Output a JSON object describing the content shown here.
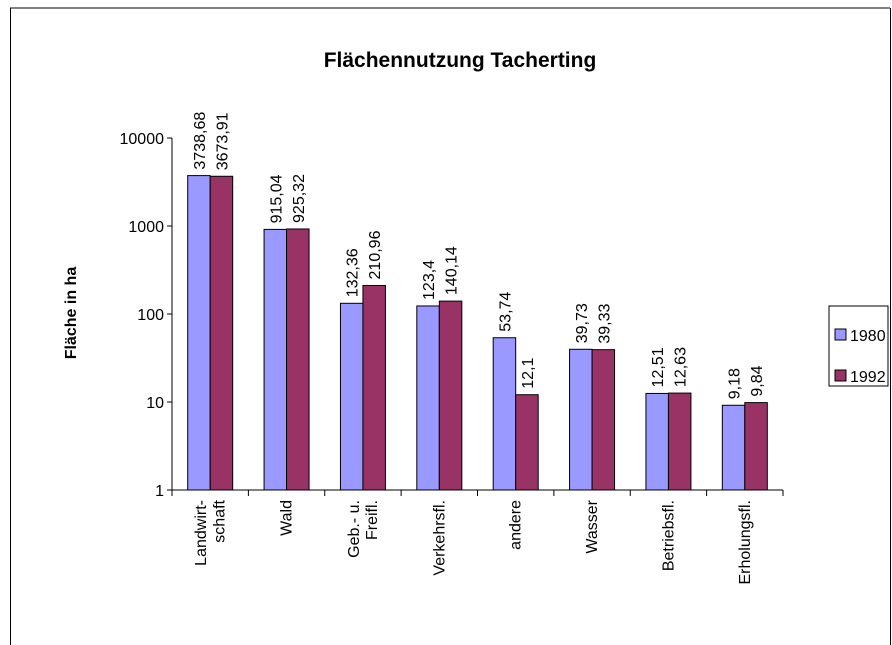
{
  "chart_data": {
    "type": "bar",
    "title": "Flächennutzung Tacherting",
    "ylabel": "Fläche in ha",
    "categories": [
      "Landwirt-\nschaft",
      "Wald",
      "Geb.- u.\nFreifl.",
      "Verkehrsfl.",
      "andere",
      "Wasser",
      "Betriebsfl.",
      "Erholungsfl."
    ],
    "series": [
      {
        "name": "1980",
        "color": "#9999ff",
        "values": [
          3738.68,
          915.04,
          132.36,
          123.4,
          53.74,
          39.73,
          12.51,
          9.18
        ],
        "value_labels": [
          "3738,68",
          "915,04",
          "132,36",
          "123,4",
          "53,74",
          "39,73",
          "12,51",
          "9,18"
        ]
      },
      {
        "name": "1992",
        "color": "#993366",
        "values": [
          3673.91,
          925.32,
          210.96,
          140.14,
          12.1,
          39.33,
          12.63,
          9.84
        ],
        "value_labels": [
          "3673,91",
          "925,32",
          "210,96",
          "140,14",
          "12,1",
          "39,33",
          "12,63",
          "9,84"
        ]
      }
    ],
    "log_scale": true,
    "ylim": [
      1,
      10000
    ],
    "yticks": [
      1,
      10,
      100,
      1000,
      10000
    ],
    "legend": "right",
    "grid": false
  }
}
